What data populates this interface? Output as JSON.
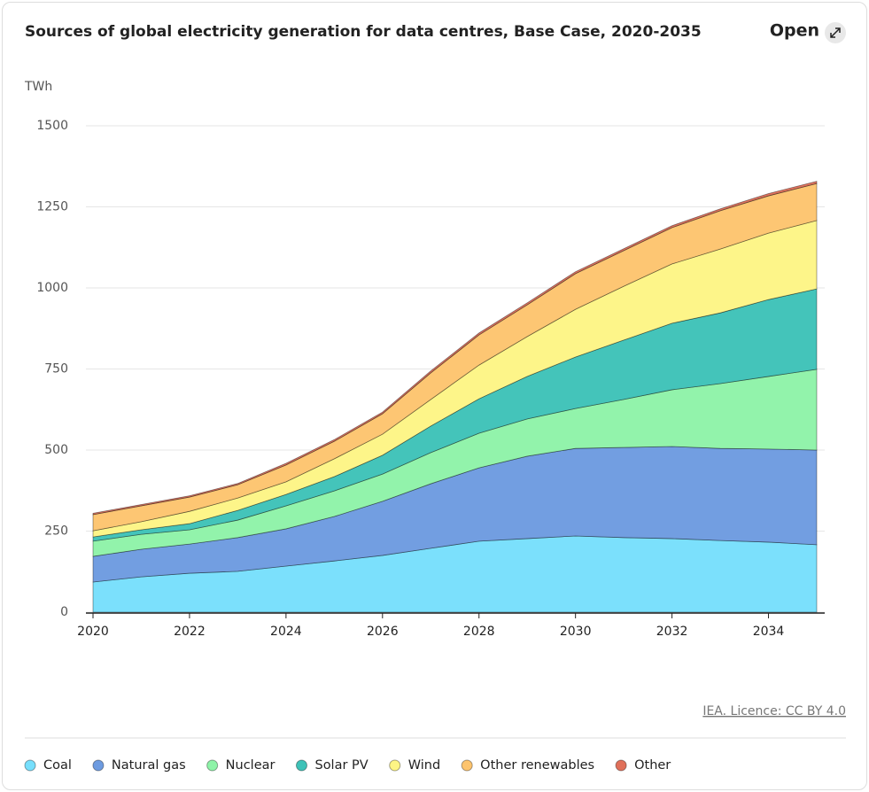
{
  "chart_data": {
    "type": "stacked_area",
    "title": "Sources of global electricity generation for data centres, Base Case, 2020-2035",
    "y_unit": "TWh",
    "source": "IEA. Licence: CC BY 4.0",
    "x": [
      2020,
      2021,
      2022,
      2023,
      2024,
      2025,
      2026,
      2027,
      2028,
      2029,
      2030,
      2031,
      2032,
      2033,
      2034,
      2035
    ],
    "xlim": [
      2020,
      2035
    ],
    "xticks": [
      2020,
      2022,
      2024,
      2026,
      2028,
      2030,
      2032,
      2034
    ],
    "ylim": [
      0,
      1500
    ],
    "yticks": [
      0,
      250,
      500,
      750,
      1000,
      1250,
      1500
    ],
    "grid": true,
    "legend": "bottom",
    "series": [
      {
        "name": "Coal",
        "color": "#77dffc",
        "values": [
          93,
          109,
          120,
          126,
          142,
          158,
          175,
          197,
          219,
          227,
          235,
          230,
          227,
          221,
          216,
          208
        ]
      },
      {
        "name": "Natural gas",
        "color": "#6d9be0",
        "values": [
          79,
          85,
          90,
          104,
          115,
          137,
          167,
          199,
          226,
          254,
          270,
          278,
          284,
          284,
          287,
          292
        ]
      },
      {
        "name": "Nuclear",
        "color": "#8ef3a8",
        "values": [
          47,
          46,
          44,
          54,
          71,
          79,
          84,
          96,
          107,
          115,
          123,
          148,
          175,
          200,
          224,
          249
        ]
      },
      {
        "name": "Solar PV",
        "color": "#3ec2b8",
        "values": [
          13,
          14,
          19,
          30,
          35,
          44,
          58,
          82,
          106,
          131,
          159,
          183,
          205,
          218,
          237,
          248
        ]
      },
      {
        "name": "Wind",
        "color": "#fdf585",
        "values": [
          19,
          25,
          38,
          38,
          39,
          55,
          65,
          82,
          104,
          123,
          147,
          166,
          183,
          197,
          205,
          211
        ]
      },
      {
        "name": "Other renewables",
        "color": "#fdc46e",
        "values": [
          50,
          49,
          44,
          41,
          52,
          54,
          63,
          82,
          93,
          98,
          110,
          110,
          112,
          118,
          115,
          114
        ]
      },
      {
        "name": "Other",
        "color": "#e0705a",
        "values": [
          4,
          4,
          4,
          4,
          5,
          5,
          5,
          6,
          6,
          6,
          6,
          6,
          6,
          6,
          7,
          7
        ]
      }
    ]
  },
  "open_button": "Open"
}
